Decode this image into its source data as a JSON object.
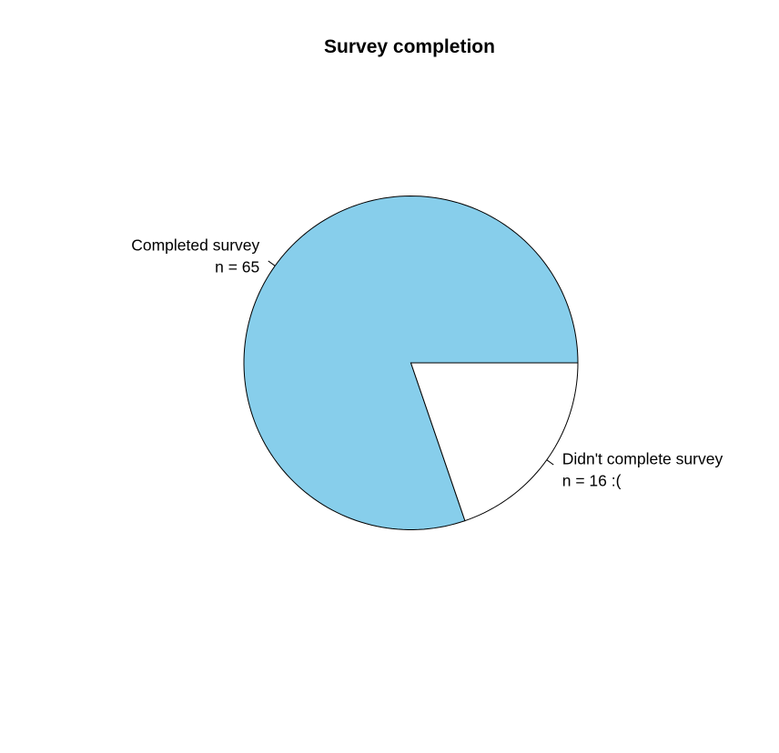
{
  "chart_data": {
    "type": "pie",
    "title": "Survey completion",
    "start_angle_deg": 0,
    "direction": "counterclockwise",
    "series": [
      {
        "values": [
          65,
          16
        ],
        "labels": [
          [
            "Completed survey",
            "n = 65"
          ],
          [
            "Didn't complete survey",
            "n = 16 :("
          ]
        ],
        "colors": [
          "#87CEEB",
          "#FFFFFF"
        ]
      }
    ],
    "categories": [
      "Completed survey",
      "Didn't complete survey"
    ],
    "values": [
      65,
      16
    ],
    "slice_colors": [
      "#87CEEB",
      "#FFFFFF"
    ],
    "border_color": "#000000",
    "legend": "none"
  }
}
